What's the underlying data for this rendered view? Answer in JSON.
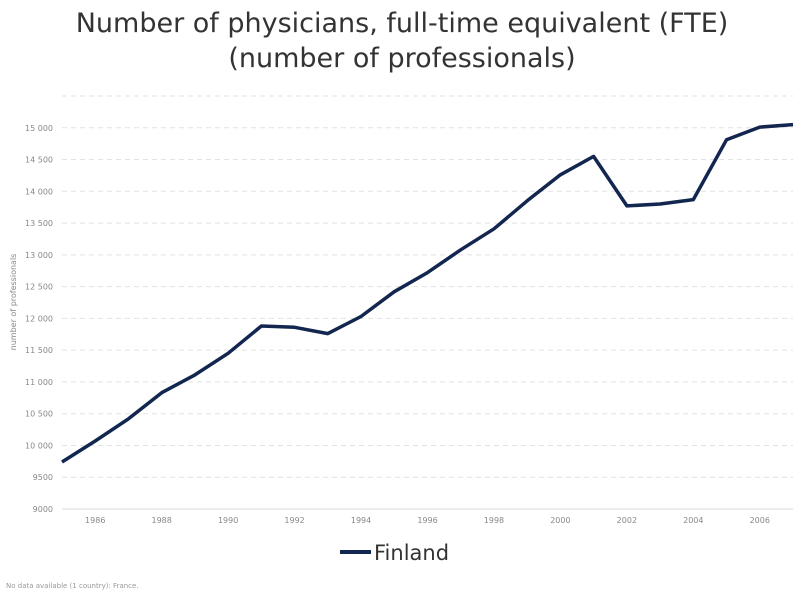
{
  "chart_data": {
    "type": "line",
    "title": [
      "Number of physicians, full-time equivalent (FTE)",
      "(number of professionals)"
    ],
    "xlabel": "",
    "ylabel": "number of professionals",
    "xlim": [
      1985,
      2007
    ],
    "ylim": [
      9000,
      15500
    ],
    "x_ticks": [
      1986,
      1988,
      1990,
      1992,
      1994,
      1996,
      1998,
      2000,
      2002,
      2004,
      2006
    ],
    "y_ticks": [
      9000,
      9500,
      10000,
      10500,
      11000,
      11500,
      12000,
      12500,
      13000,
      13500,
      14000,
      14500,
      15000
    ],
    "y_tick_labels": [
      "9000",
      "9500",
      "10 000",
      "10 500",
      "11 000",
      "11 500",
      "12 000",
      "12 500",
      "13 000",
      "13 500",
      "14 000",
      "14 500",
      "15 000"
    ],
    "grid": true,
    "legend_position": "bottom-center",
    "series": [
      {
        "name": "Finland",
        "color": "#12264f",
        "x": [
          1985,
          1986,
          1987,
          1988,
          1989,
          1990,
          1991,
          1992,
          1993,
          1994,
          1995,
          1996,
          1997,
          1998,
          1999,
          2000,
          2001,
          2002,
          2003,
          2004,
          2005,
          2006,
          2007
        ],
        "y": [
          9740,
          10070,
          10420,
          10830,
          11110,
          11450,
          11880,
          11860,
          11760,
          12030,
          12420,
          12720,
          13080,
          13410,
          13850,
          14260,
          14550,
          13770,
          13800,
          13870,
          14810,
          15010,
          15050
        ]
      }
    ]
  },
  "footnote": "No data available (1 country): France."
}
